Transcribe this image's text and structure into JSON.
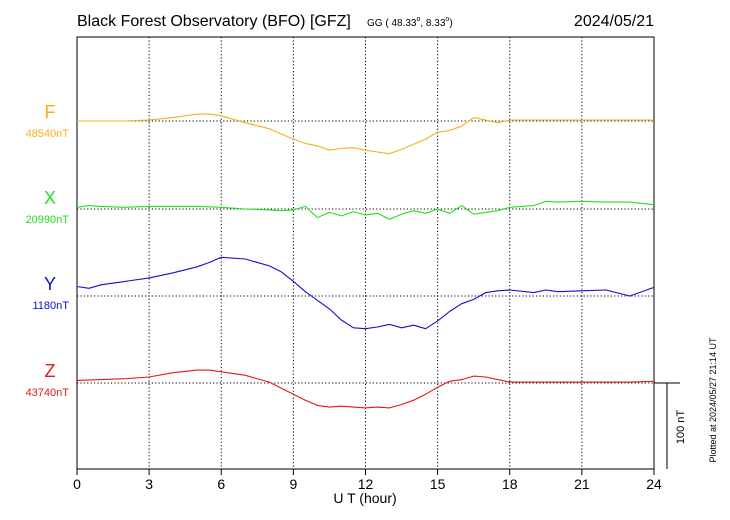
{
  "header": {
    "title": "Black Forest Observatory (BFO)  [GFZ]",
    "coords_prefix": "GG ( 48.33",
    "coords_mid": ",   8.33",
    "coords_suffix": ")",
    "degree": "o",
    "date": "2024/05/21"
  },
  "side_note": "Plotted at 2024/05/27 21:14 UT",
  "scale_label": "100 nT",
  "colors": {
    "F": "#f5b01c",
    "X": "#22e022",
    "Y": "#1010cc",
    "Z": "#e01818",
    "grid": "#000000"
  },
  "chart_data": {
    "type": "line",
    "xlabel": "U T (hour)",
    "ylabel": "",
    "xlim": [
      0,
      24
    ],
    "x_ticks": [
      "0",
      "3",
      "6",
      "9",
      "12",
      "15",
      "18",
      "21",
      "24"
    ],
    "scale_bar_nT": 100,
    "grid": true,
    "series": [
      {
        "name": "F",
        "baseline_label": "48540nT",
        "baseline": 48540,
        "x": [
          0,
          1,
          2,
          3,
          4,
          5,
          5.5,
          6,
          7,
          8,
          9,
          9.5,
          10,
          10.5,
          11,
          11.5,
          12,
          12.5,
          13,
          13.5,
          14,
          14.5,
          15,
          15.5,
          16,
          16.2,
          16.5,
          17,
          17.5,
          18,
          19,
          20,
          21,
          22,
          23,
          24
        ],
        "y": [
          48540,
          48540,
          48540,
          48541,
          48544,
          48548,
          48548,
          48546,
          48538,
          48531,
          48519,
          48514,
          48511,
          48506,
          48508,
          48509,
          48506,
          48504,
          48502,
          48507,
          48513,
          48519,
          48527,
          48529,
          48534,
          48538,
          48544,
          48541,
          48538,
          48541,
          48541,
          48541,
          48541,
          48541,
          48541,
          48541
        ]
      },
      {
        "name": "X",
        "baseline_label": "20990nT",
        "baseline": 20990,
        "x": [
          0,
          0.5,
          1,
          2,
          3,
          4,
          5,
          6,
          7,
          8,
          8.5,
          9,
          9.5,
          10,
          10.5,
          11,
          11.5,
          12,
          12.5,
          13,
          13.5,
          14,
          14.5,
          15,
          15.5,
          16,
          16.5,
          17,
          17.5,
          18,
          19,
          19.5,
          20,
          21,
          22,
          23,
          24
        ],
        "y": [
          20992,
          20994,
          20993,
          20992,
          20993,
          20993,
          20993,
          20992,
          20990,
          20989,
          20988,
          20989,
          20993,
          20980,
          20986,
          20982,
          20987,
          20983,
          20985,
          20978,
          20984,
          20988,
          20985,
          20990,
          20985,
          20994,
          20984,
          20986,
          20988,
          20992,
          20994,
          20999,
          20998,
          20999,
          20998,
          20998,
          20995
        ]
      },
      {
        "name": "Y",
        "baseline_label": "1180nT",
        "baseline": 1180,
        "x": [
          0,
          0.5,
          1,
          2,
          3,
          4,
          5,
          5.5,
          6,
          7,
          8,
          8.5,
          9,
          9.5,
          10,
          10.5,
          11,
          11.5,
          12,
          12.5,
          13,
          13.5,
          14,
          14.5,
          15,
          15.5,
          16,
          16.5,
          17,
          17.5,
          18,
          19,
          19.5,
          20,
          21,
          22,
          23,
          24
        ],
        "y": [
          1191,
          1189,
          1193,
          1197,
          1201,
          1207,
          1214,
          1219,
          1225,
          1223,
          1215,
          1208,
          1197,
          1185,
          1175,
          1165,
          1152,
          1143,
          1142,
          1144,
          1147,
          1143,
          1146,
          1142,
          1151,
          1162,
          1171,
          1176,
          1184,
          1186,
          1187,
          1184,
          1187,
          1185,
          1186,
          1187,
          1180,
          1190
        ]
      },
      {
        "name": "Z",
        "baseline_label": "43740nT",
        "baseline": 43740,
        "x": [
          0,
          1,
          2,
          3,
          4,
          5,
          5.5,
          6,
          7,
          8,
          8.5,
          9,
          9.5,
          10,
          10.5,
          11,
          12,
          12.5,
          13,
          13.5,
          14,
          14.5,
          15,
          15.5,
          16,
          16.5,
          17,
          17.5,
          18,
          19,
          20,
          21,
          22,
          23,
          24
        ],
        "y": [
          43743,
          43744,
          43745,
          43747,
          43752,
          43755,
          43755,
          43753,
          43749,
          43741,
          43734,
          43727,
          43720,
          43714,
          43712,
          43713,
          43711,
          43712,
          43711,
          43715,
          43720,
          43727,
          43735,
          43742,
          43744,
          43748,
          43747,
          43744,
          43741,
          43741,
          43741,
          43741,
          43741,
          43741,
          43742
        ]
      }
    ]
  }
}
